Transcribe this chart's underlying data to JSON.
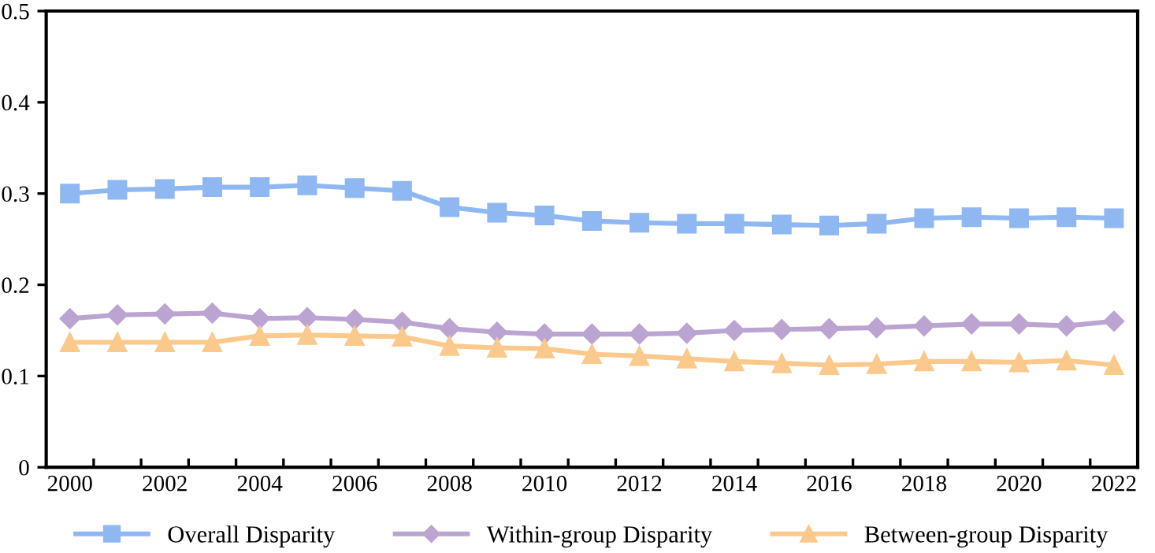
{
  "chart_data": {
    "type": "line",
    "categories": [
      "2000",
      null,
      "2002",
      null,
      "2004",
      null,
      "2006",
      null,
      "2008",
      null,
      "2010",
      null,
      "2012",
      null,
      "2014",
      null,
      "2016",
      null,
      "2018",
      null,
      "2020",
      null,
      "2022"
    ],
    "series": [
      {
        "name": "Overall Disparity",
        "color": "#8fb8f2",
        "marker": "square",
        "values": [
          0.3,
          0.304,
          0.305,
          0.307,
          0.307,
          0.309,
          0.306,
          0.303,
          0.285,
          0.279,
          0.276,
          0.27,
          0.268,
          0.267,
          0.267,
          0.266,
          0.265,
          0.267,
          0.273,
          0.274,
          0.273,
          0.274,
          0.273
        ]
      },
      {
        "name": "Within-group Disparity",
        "color": "#bca4d2",
        "marker": "diamond",
        "values": [
          0.163,
          0.167,
          0.168,
          0.169,
          0.163,
          0.164,
          0.162,
          0.159,
          0.152,
          0.148,
          0.146,
          0.146,
          0.146,
          0.147,
          0.15,
          0.151,
          0.152,
          0.153,
          0.155,
          0.157,
          0.157,
          0.155,
          0.16
        ]
      },
      {
        "name": "Between-group Disparity",
        "color": "#fbc98c",
        "marker": "triangle",
        "values": [
          0.137,
          0.137,
          0.137,
          0.137,
          0.144,
          0.145,
          0.144,
          0.143,
          0.133,
          0.131,
          0.13,
          0.124,
          0.122,
          0.119,
          0.116,
          0.114,
          0.112,
          0.113,
          0.116,
          0.116,
          0.115,
          0.117,
          0.112
        ]
      }
    ],
    "ylim": [
      0,
      0.5
    ],
    "yticks": [
      {
        "value": 0,
        "label": "0"
      },
      0.1,
      0.2,
      0.3,
      0.4,
      0.5
    ],
    "grid": false,
    "legend": "bottom",
    "line_style": "solid"
  }
}
